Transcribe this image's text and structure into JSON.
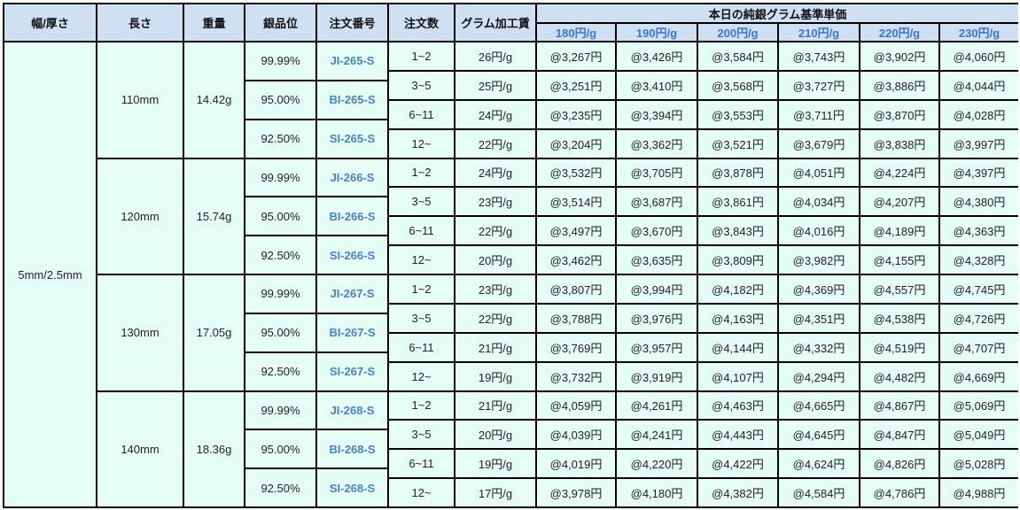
{
  "headers": {
    "width": "幅/厚さ",
    "length": "長さ",
    "weight": "重量",
    "purity": "銀品位",
    "order_no": "注文番号",
    "qty": "注文数",
    "fee": "グラム加工賃",
    "base_price": "本日の純銀グラム基準単価",
    "prices": [
      "180円/g",
      "190円/g",
      "200円/g",
      "210円/g",
      "220円/g",
      "230円/g"
    ]
  },
  "width_value": "5mm/2.5mm",
  "colors": {
    "header_bg": "#cfe0f3",
    "body_bg": "#e6fff6",
    "price_header": "#3d74d6",
    "code": "#4a82c9"
  },
  "groups": [
    {
      "length": "110mm",
      "weight": "14.42g",
      "purities": [
        {
          "purity": "99.99%",
          "code": "JI-265-S"
        },
        {
          "purity": "95.00%",
          "code": "BI-265-S"
        },
        {
          "purity": "92.50%",
          "code": "SI-265-S"
        }
      ],
      "rows": [
        {
          "qty": "1~2",
          "fee": "26円/g",
          "prices": [
            "@3,267円",
            "@3,426円",
            "@3,584円",
            "@3,743円",
            "@3,902円",
            "@4,060円"
          ]
        },
        {
          "qty": "3~5",
          "fee": "25円/g",
          "prices": [
            "@3,251円",
            "@3,410円",
            "@3,568円",
            "@3,727円",
            "@3,886円",
            "@4,044円"
          ]
        },
        {
          "qty": "6~11",
          "fee": "24円/g",
          "prices": [
            "@3,235円",
            "@3,394円",
            "@3,553円",
            "@3,711円",
            "@3,870円",
            "@4,028円"
          ]
        },
        {
          "qty": "12~",
          "fee": "22円/g",
          "prices": [
            "@3,204円",
            "@3,362円",
            "@3,521円",
            "@3,679円",
            "@3,838円",
            "@3,997円"
          ]
        }
      ]
    },
    {
      "length": "120mm",
      "weight": "15.74g",
      "purities": [
        {
          "purity": "99.99%",
          "code": "JI-266-S"
        },
        {
          "purity": "95.00%",
          "code": "BI-266-S"
        },
        {
          "purity": "92.50%",
          "code": "SI-266-S"
        }
      ],
      "rows": [
        {
          "qty": "1~2",
          "fee": "24円/g",
          "prices": [
            "@3,532円",
            "@3,705円",
            "@3,878円",
            "@4,051円",
            "@4,224円",
            "@4,397円"
          ]
        },
        {
          "qty": "3~5",
          "fee": "23円/g",
          "prices": [
            "@3,514円",
            "@3,687円",
            "@3,861円",
            "@4,034円",
            "@4,207円",
            "@4,380円"
          ]
        },
        {
          "qty": "6~11",
          "fee": "22円/g",
          "prices": [
            "@3,497円",
            "@3,670円",
            "@3,843円",
            "@4,016円",
            "@4,189円",
            "@4,363円"
          ]
        },
        {
          "qty": "12~",
          "fee": "20円/g",
          "prices": [
            "@3,462円",
            "@3,635円",
            "@3,809円",
            "@3,982円",
            "@4,155円",
            "@4,328円"
          ]
        }
      ]
    },
    {
      "length": "130mm",
      "weight": "17.05g",
      "purities": [
        {
          "purity": "99.99%",
          "code": "JI-267-S"
        },
        {
          "purity": "95.00%",
          "code": "BI-267-S"
        },
        {
          "purity": "92.50%",
          "code": "SI-267-S"
        }
      ],
      "rows": [
        {
          "qty": "1~2",
          "fee": "23円/g",
          "prices": [
            "@3,807円",
            "@3,994円",
            "@4,182円",
            "@4,369円",
            "@4,557円",
            "@4,745円"
          ]
        },
        {
          "qty": "3~5",
          "fee": "22円/g",
          "prices": [
            "@3,788円",
            "@3,976円",
            "@4,163円",
            "@4,351円",
            "@4,538円",
            "@4,726円"
          ]
        },
        {
          "qty": "6~11",
          "fee": "21円/g",
          "prices": [
            "@3,769円",
            "@3,957円",
            "@4,144円",
            "@4,332円",
            "@4,519円",
            "@4,707円"
          ]
        },
        {
          "qty": "12~",
          "fee": "19円/g",
          "prices": [
            "@3,732円",
            "@3,919円",
            "@4,107円",
            "@4,294円",
            "@4,482円",
            "@4,669円"
          ]
        }
      ]
    },
    {
      "length": "140mm",
      "weight": "18.36g",
      "purities": [
        {
          "purity": "99.99%",
          "code": "JI-268-S"
        },
        {
          "purity": "95.00%",
          "code": "BI-268-S"
        },
        {
          "purity": "92.50%",
          "code": "SI-268-S"
        }
      ],
      "rows": [
        {
          "qty": "1~2",
          "fee": "21円/g",
          "prices": [
            "@4,059円",
            "@4,261円",
            "@4,463円",
            "@4,665円",
            "@4,867円",
            "@5,069円"
          ]
        },
        {
          "qty": "3~5",
          "fee": "20円/g",
          "prices": [
            "@4,039円",
            "@4,241円",
            "@4,443円",
            "@4,645円",
            "@4,847円",
            "@5,049円"
          ]
        },
        {
          "qty": "6~11",
          "fee": "19円/g",
          "prices": [
            "@4,019円",
            "@4,220円",
            "@4,422円",
            "@4,624円",
            "@4,826円",
            "@5,028円"
          ]
        },
        {
          "qty": "12~",
          "fee": "17円/g",
          "prices": [
            "@3,978円",
            "@4,180円",
            "@4,382円",
            "@4,584円",
            "@4,786円",
            "@4,988円"
          ]
        }
      ]
    }
  ]
}
